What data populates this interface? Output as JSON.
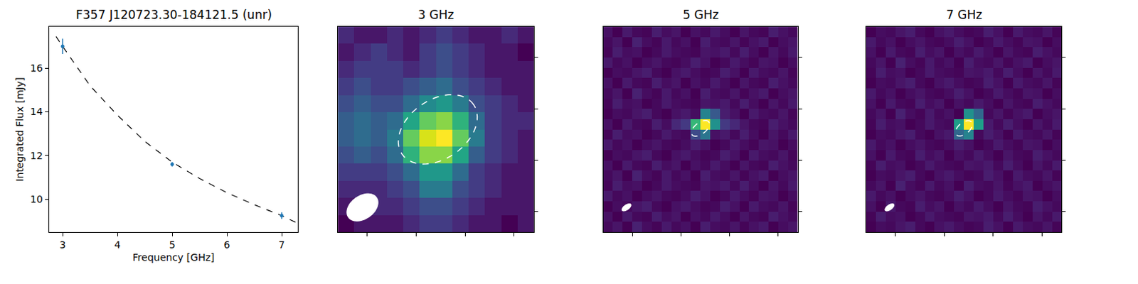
{
  "chart_data": [
    {
      "type": "scatter",
      "title": "F357 J120723.30-184121.5 (unr)",
      "x_label": "Frequency [GHz]",
      "y_label": "Integrated Flux [mJy]",
      "x": [
        3,
        5,
        7
      ],
      "values": [
        17.0,
        11.6,
        9.25
      ],
      "errors": [
        0.35,
        0.1,
        0.15
      ],
      "color": "#1f77b4",
      "marker": "circle",
      "fit": {
        "x": [
          2.88,
          3,
          3.5,
          4,
          4.5,
          5,
          5.5,
          6,
          6.5,
          7,
          7.25
        ],
        "values": [
          17.45,
          17.0,
          15.2,
          13.85,
          12.65,
          11.7,
          10.95,
          10.3,
          9.75,
          9.25,
          8.95
        ],
        "line_style": "dashed",
        "color": "#000000"
      },
      "xlim": [
        2.75,
        7.3
      ],
      "ylim": [
        8.5,
        17.9
      ],
      "xticks": [
        3,
        4,
        5,
        6,
        7
      ],
      "yticks": [
        10,
        12,
        14,
        16
      ],
      "grid": false
    },
    {
      "type": "heatmap",
      "title": "3 GHz",
      "color": "Viridis",
      "tick_labels": false,
      "xlim": [
        -0.5,
        11.5
      ],
      "ylim": [
        -0.5,
        11.5
      ],
      "xticks": [
        1.3,
        4.3,
        7.3,
        10.3
      ],
      "yticks": [
        0.7,
        3.7,
        6.7,
        9.7
      ],
      "cells": [
        [
          0.15,
          0.2,
          0.2,
          0.2,
          0.25,
          0.3,
          0.3,
          0.25,
          0.2,
          0.2,
          0.15,
          0.2
        ],
        [
          0.2,
          0.2,
          0.25,
          0.25,
          0.3,
          0.35,
          0.35,
          0.3,
          0.25,
          0.2,
          0.2,
          0.2
        ],
        [
          0.25,
          0.25,
          0.25,
          0.3,
          0.35,
          0.5,
          0.5,
          0.35,
          0.3,
          0.25,
          0.2,
          0.2
        ],
        [
          0.3,
          0.3,
          0.3,
          0.35,
          0.45,
          0.6,
          0.6,
          0.45,
          0.3,
          0.25,
          0.2,
          0.2
        ],
        [
          0.35,
          0.4,
          0.35,
          0.45,
          0.7,
          0.85,
          0.85,
          0.65,
          0.4,
          0.3,
          0.25,
          0.2
        ],
        [
          0.4,
          0.45,
          0.4,
          0.5,
          0.8,
          0.95,
          1.0,
          0.8,
          0.5,
          0.3,
          0.25,
          0.2
        ],
        [
          0.4,
          0.45,
          0.4,
          0.45,
          0.65,
          0.8,
          0.85,
          0.7,
          0.45,
          0.3,
          0.25,
          0.25
        ],
        [
          0.35,
          0.4,
          0.35,
          0.35,
          0.45,
          0.55,
          0.6,
          0.5,
          0.35,
          0.3,
          0.25,
          0.2
        ],
        [
          0.3,
          0.35,
          0.3,
          0.3,
          0.35,
          0.4,
          0.45,
          0.35,
          0.3,
          0.25,
          0.2,
          0.2
        ],
        [
          0.25,
          0.3,
          0.3,
          0.3,
          0.25,
          0.3,
          0.35,
          0.3,
          0.25,
          0.2,
          0.2,
          0.2
        ],
        [
          0.2,
          0.25,
          0.3,
          0.25,
          0.2,
          0.3,
          0.35,
          0.3,
          0.25,
          0.2,
          0.2,
          0.15
        ],
        [
          0.25,
          0.2,
          0.2,
          0.25,
          0.2,
          0.25,
          0.3,
          0.25,
          0.2,
          0.2,
          0.25,
          0.2
        ]
      ]
    },
    {
      "type": "heatmap",
      "title": "5 GHz",
      "color": "Viridis",
      "tick_labels": false,
      "xlim": [
        -0.5,
        19.5
      ],
      "ylim": [
        -0.5,
        19.5
      ],
      "xticks": [
        2.5,
        7.5,
        12.5,
        17.5
      ],
      "yticks": [
        1.5,
        6.5,
        11.5,
        16.5
      ],
      "cells": [
        [
          0.12,
          0.15,
          0.1,
          0.18,
          0.13,
          0.11,
          0.16,
          0.12,
          0.14,
          0.1,
          0.17,
          0.13,
          0.12,
          0.15,
          0.11,
          0.14,
          0.16,
          0.1,
          0.13,
          0.15
        ],
        [
          0.14,
          0.1,
          0.16,
          0.12,
          0.11,
          0.17,
          0.13,
          0.15,
          0.1,
          0.14,
          0.12,
          0.16,
          0.13,
          0.1,
          0.15,
          0.12,
          0.11,
          0.17,
          0.14,
          0.12
        ],
        [
          0.1,
          0.13,
          0.12,
          0.15,
          0.17,
          0.12,
          0.1,
          0.14,
          0.16,
          0.13,
          0.11,
          0.12,
          0.17,
          0.14,
          0.1,
          0.16,
          0.13,
          0.12,
          0.15,
          0.11
        ],
        [
          0.16,
          0.12,
          0.14,
          0.1,
          0.13,
          0.15,
          0.12,
          0.11,
          0.13,
          0.17,
          0.14,
          0.1,
          0.12,
          0.16,
          0.13,
          0.11,
          0.15,
          0.14,
          0.1,
          0.13
        ],
        [
          0.11,
          0.17,
          0.13,
          0.14,
          0.1,
          0.12,
          0.16,
          0.13,
          0.12,
          0.11,
          0.15,
          0.14,
          0.16,
          0.12,
          0.17,
          0.13,
          0.1,
          0.15,
          0.12,
          0.16
        ],
        [
          0.12,
          0.15,
          0.1,
          0.18,
          0.13,
          0.11,
          0.16,
          0.12,
          0.14,
          0.1,
          0.17,
          0.13,
          0.12,
          0.15,
          0.11,
          0.14,
          0.16,
          0.1,
          0.13,
          0.15
        ],
        [
          0.14,
          0.1,
          0.16,
          0.12,
          0.11,
          0.17,
          0.13,
          0.15,
          0.1,
          0.14,
          0.12,
          0.16,
          0.13,
          0.1,
          0.15,
          0.12,
          0.11,
          0.17,
          0.14,
          0.12
        ],
        [
          0.1,
          0.13,
          0.12,
          0.15,
          0.17,
          0.12,
          0.1,
          0.14,
          0.16,
          0.13,
          0.11,
          0.12,
          0.17,
          0.14,
          0.1,
          0.16,
          0.13,
          0.12,
          0.15,
          0.11
        ],
        [
          0.16,
          0.12,
          0.14,
          0.1,
          0.13,
          0.15,
          0.12,
          0.11,
          0.13,
          0.17,
          0.14,
          0.1,
          0.12,
          0.16,
          0.13,
          0.11,
          0.15,
          0.14,
          0.1,
          0.13
        ],
        [
          0.11,
          0.17,
          0.13,
          0.14,
          0.1,
          0.12,
          0.16,
          0.13,
          0.12,
          0.3,
          0.45,
          0.14,
          0.16,
          0.12,
          0.17,
          0.13,
          0.1,
          0.15,
          0.12,
          0.16
        ],
        [
          0.14,
          0.1,
          0.16,
          0.12,
          0.11,
          0.17,
          0.13,
          0.2,
          0.25,
          0.7,
          1.0,
          0.55,
          0.25,
          0.2,
          0.15,
          0.12,
          0.11,
          0.17,
          0.14,
          0.12
        ],
        [
          0.1,
          0.13,
          0.12,
          0.15,
          0.17,
          0.12,
          0.1,
          0.14,
          0.16,
          0.13,
          0.5,
          0.35,
          0.17,
          0.14,
          0.1,
          0.16,
          0.13,
          0.12,
          0.15,
          0.11
        ],
        [
          0.11,
          0.17,
          0.13,
          0.14,
          0.1,
          0.12,
          0.16,
          0.13,
          0.12,
          0.11,
          0.15,
          0.14,
          0.16,
          0.12,
          0.17,
          0.13,
          0.1,
          0.15,
          0.12,
          0.16
        ],
        [
          0.12,
          0.15,
          0.1,
          0.18,
          0.13,
          0.11,
          0.16,
          0.12,
          0.14,
          0.1,
          0.17,
          0.13,
          0.12,
          0.15,
          0.11,
          0.14,
          0.16,
          0.1,
          0.13,
          0.15
        ],
        [
          0.14,
          0.1,
          0.16,
          0.12,
          0.11,
          0.17,
          0.13,
          0.15,
          0.1,
          0.14,
          0.12,
          0.16,
          0.13,
          0.1,
          0.15,
          0.12,
          0.11,
          0.17,
          0.14,
          0.12
        ],
        [
          0.1,
          0.13,
          0.12,
          0.15,
          0.17,
          0.12,
          0.1,
          0.14,
          0.16,
          0.13,
          0.11,
          0.12,
          0.17,
          0.14,
          0.1,
          0.16,
          0.13,
          0.12,
          0.15,
          0.11
        ],
        [
          0.16,
          0.12,
          0.14,
          0.1,
          0.13,
          0.15,
          0.12,
          0.11,
          0.13,
          0.17,
          0.14,
          0.1,
          0.12,
          0.16,
          0.13,
          0.11,
          0.15,
          0.14,
          0.1,
          0.13
        ],
        [
          0.11,
          0.17,
          0.13,
          0.14,
          0.1,
          0.12,
          0.16,
          0.13,
          0.12,
          0.11,
          0.15,
          0.14,
          0.16,
          0.12,
          0.17,
          0.13,
          0.1,
          0.15,
          0.12,
          0.16
        ],
        [
          0.12,
          0.15,
          0.1,
          0.18,
          0.13,
          0.11,
          0.16,
          0.12,
          0.14,
          0.1,
          0.17,
          0.13,
          0.12,
          0.15,
          0.11,
          0.14,
          0.16,
          0.1,
          0.13,
          0.15
        ],
        [
          0.14,
          0.1,
          0.16,
          0.12,
          0.11,
          0.17,
          0.13,
          0.15,
          0.1,
          0.14,
          0.12,
          0.16,
          0.13,
          0.1,
          0.15,
          0.12,
          0.11,
          0.17,
          0.14,
          0.12
        ]
      ]
    },
    {
      "type": "heatmap",
      "title": "7 GHz",
      "color": "Viridis",
      "tick_labels": false,
      "xlim": [
        -0.5,
        19.5
      ],
      "ylim": [
        -0.5,
        19.5
      ],
      "xticks": [
        2.5,
        7.5,
        12.5,
        17.5
      ],
      "yticks": [
        1.5,
        6.5,
        11.5,
        16.5
      ],
      "cells": [
        [
          0.1,
          0.13,
          0.12,
          0.15,
          0.17,
          0.12,
          0.1,
          0.14,
          0.16,
          0.13,
          0.11,
          0.12,
          0.17,
          0.14,
          0.1,
          0.16,
          0.13,
          0.12,
          0.15,
          0.11
        ],
        [
          0.11,
          0.17,
          0.13,
          0.14,
          0.1,
          0.12,
          0.16,
          0.13,
          0.12,
          0.11,
          0.15,
          0.14,
          0.16,
          0.12,
          0.17,
          0.13,
          0.1,
          0.15,
          0.12,
          0.16
        ],
        [
          0.14,
          0.1,
          0.16,
          0.12,
          0.11,
          0.17,
          0.13,
          0.15,
          0.1,
          0.14,
          0.12,
          0.16,
          0.13,
          0.1,
          0.15,
          0.12,
          0.11,
          0.17,
          0.14,
          0.12
        ],
        [
          0.16,
          0.12,
          0.14,
          0.1,
          0.13,
          0.15,
          0.12,
          0.11,
          0.13,
          0.17,
          0.14,
          0.1,
          0.12,
          0.16,
          0.13,
          0.11,
          0.15,
          0.14,
          0.1,
          0.13
        ],
        [
          0.12,
          0.15,
          0.1,
          0.18,
          0.13,
          0.11,
          0.16,
          0.12,
          0.14,
          0.1,
          0.17,
          0.13,
          0.12,
          0.15,
          0.11,
          0.14,
          0.16,
          0.1,
          0.13,
          0.15
        ],
        [
          0.1,
          0.13,
          0.12,
          0.15,
          0.17,
          0.12,
          0.1,
          0.14,
          0.16,
          0.13,
          0.11,
          0.12,
          0.17,
          0.14,
          0.1,
          0.16,
          0.13,
          0.12,
          0.15,
          0.11
        ],
        [
          0.11,
          0.17,
          0.13,
          0.14,
          0.1,
          0.12,
          0.16,
          0.13,
          0.12,
          0.11,
          0.15,
          0.14,
          0.16,
          0.12,
          0.17,
          0.13,
          0.1,
          0.15,
          0.12,
          0.16
        ],
        [
          0.14,
          0.1,
          0.16,
          0.12,
          0.11,
          0.17,
          0.13,
          0.15,
          0.1,
          0.14,
          0.12,
          0.16,
          0.13,
          0.1,
          0.15,
          0.12,
          0.11,
          0.17,
          0.14,
          0.12
        ],
        [
          0.16,
          0.12,
          0.14,
          0.1,
          0.13,
          0.15,
          0.12,
          0.11,
          0.13,
          0.17,
          0.14,
          0.1,
          0.12,
          0.16,
          0.13,
          0.11,
          0.15,
          0.14,
          0.1,
          0.13
        ],
        [
          0.1,
          0.13,
          0.12,
          0.15,
          0.17,
          0.12,
          0.1,
          0.14,
          0.16,
          0.4,
          0.5,
          0.12,
          0.17,
          0.14,
          0.1,
          0.16,
          0.13,
          0.12,
          0.15,
          0.11
        ],
        [
          0.11,
          0.17,
          0.13,
          0.14,
          0.1,
          0.12,
          0.16,
          0.13,
          0.12,
          0.6,
          1.0,
          0.6,
          0.16,
          0.12,
          0.17,
          0.13,
          0.1,
          0.15,
          0.12,
          0.16
        ],
        [
          0.12,
          0.15,
          0.1,
          0.18,
          0.13,
          0.11,
          0.16,
          0.12,
          0.14,
          0.1,
          0.55,
          0.4,
          0.12,
          0.15,
          0.11,
          0.14,
          0.16,
          0.1,
          0.13,
          0.15
        ],
        [
          0.14,
          0.1,
          0.16,
          0.12,
          0.11,
          0.17,
          0.13,
          0.15,
          0.1,
          0.14,
          0.12,
          0.16,
          0.13,
          0.1,
          0.15,
          0.12,
          0.11,
          0.17,
          0.14,
          0.12
        ],
        [
          0.16,
          0.12,
          0.14,
          0.1,
          0.13,
          0.15,
          0.12,
          0.11,
          0.13,
          0.17,
          0.14,
          0.1,
          0.12,
          0.16,
          0.13,
          0.11,
          0.15,
          0.14,
          0.1,
          0.13
        ],
        [
          0.1,
          0.13,
          0.12,
          0.15,
          0.17,
          0.12,
          0.1,
          0.14,
          0.16,
          0.13,
          0.11,
          0.12,
          0.17,
          0.14,
          0.1,
          0.16,
          0.13,
          0.12,
          0.15,
          0.11
        ],
        [
          0.11,
          0.17,
          0.13,
          0.14,
          0.1,
          0.12,
          0.16,
          0.13,
          0.12,
          0.11,
          0.15,
          0.14,
          0.16,
          0.12,
          0.17,
          0.13,
          0.1,
          0.15,
          0.12,
          0.16
        ],
        [
          0.12,
          0.15,
          0.1,
          0.18,
          0.13,
          0.11,
          0.16,
          0.12,
          0.14,
          0.1,
          0.17,
          0.13,
          0.12,
          0.15,
          0.11,
          0.14,
          0.16,
          0.1,
          0.13,
          0.15
        ],
        [
          0.14,
          0.1,
          0.16,
          0.12,
          0.11,
          0.17,
          0.13,
          0.15,
          0.1,
          0.14,
          0.12,
          0.16,
          0.13,
          0.1,
          0.15,
          0.12,
          0.11,
          0.17,
          0.14,
          0.12
        ],
        [
          0.16,
          0.12,
          0.14,
          0.1,
          0.13,
          0.15,
          0.12,
          0.11,
          0.13,
          0.17,
          0.14,
          0.1,
          0.12,
          0.16,
          0.13,
          0.11,
          0.15,
          0.14,
          0.1,
          0.13
        ],
        [
          0.1,
          0.13,
          0.12,
          0.15,
          0.17,
          0.12,
          0.1,
          0.14,
          0.16,
          0.13,
          0.11,
          0.12,
          0.17,
          0.14,
          0.1,
          0.16,
          0.13,
          0.12,
          0.15,
          0.11
        ]
      ]
    }
  ]
}
